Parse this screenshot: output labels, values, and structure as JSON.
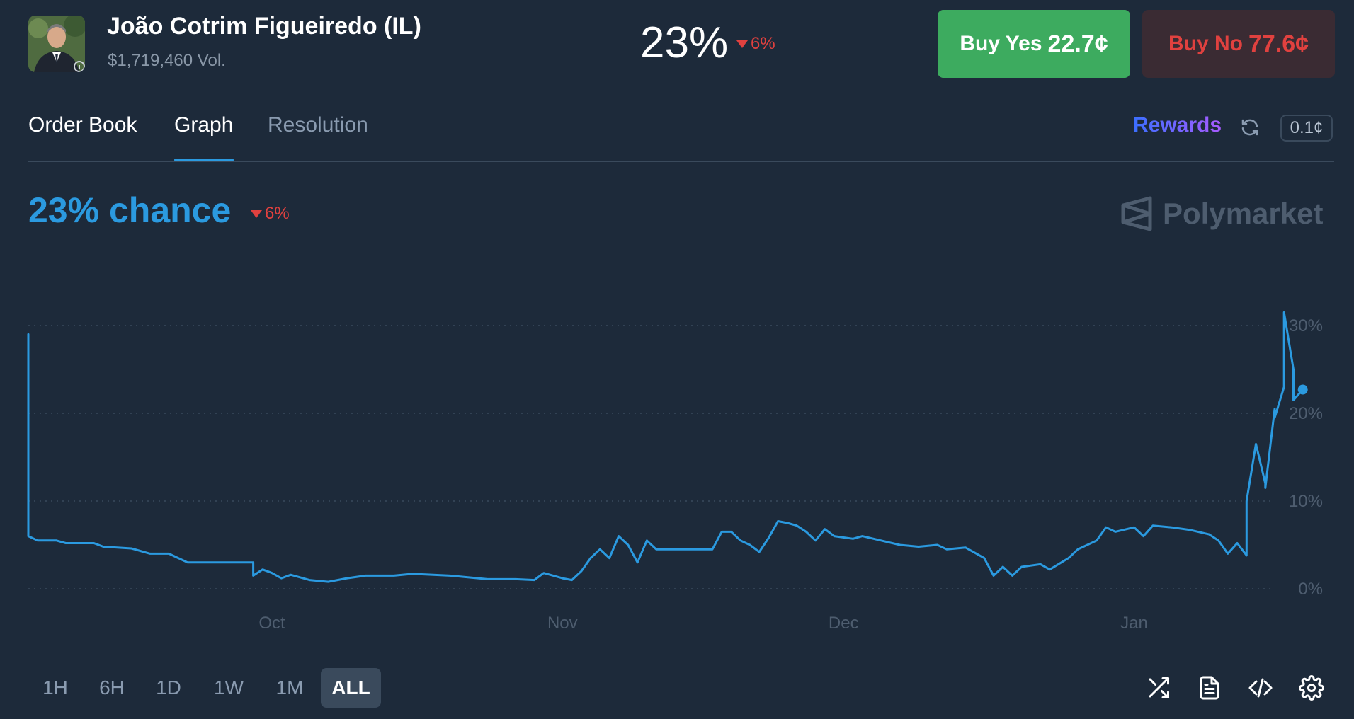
{
  "header": {
    "title": "João Cotrim Figueiredo (IL)",
    "volume": "$1,719,460 Vol.",
    "percent": "23%",
    "change": "6%",
    "buy_yes_label": "Buy Yes",
    "buy_yes_price": "22.7¢",
    "buy_no_label": "Buy No",
    "buy_no_price": "77.6¢"
  },
  "tabs": [
    {
      "label": "Order Book"
    },
    {
      "label": "Graph"
    },
    {
      "label": "Resolution"
    }
  ],
  "active_tab": "Graph",
  "tools": {
    "rewards_label": "Rewards",
    "tick_size": "0.1¢"
  },
  "summary": {
    "chance": "23% chance",
    "change": "6%",
    "brand": "Polymarket"
  },
  "ranges": [
    "1H",
    "6H",
    "1D",
    "1W",
    "1M",
    "ALL"
  ],
  "active_range": "ALL",
  "bottom_icons": [
    "shuffle-icon",
    "document-icon",
    "code-icon",
    "settings-icon"
  ],
  "colors": {
    "background": "#1d2a3a",
    "accent": "#2b9ae0",
    "negative": "#e0413f",
    "yes": "#3dab5f",
    "no_bg": "#3a2b33"
  },
  "chart_data": {
    "type": "line",
    "title": "",
    "xlabel": "",
    "ylabel": "",
    "x_ticks": [
      "Oct",
      "Nov",
      "Dec",
      "Jan"
    ],
    "y_ticks": [
      "0%",
      "10%",
      "20%",
      "30%"
    ],
    "ylim": [
      0,
      30
    ],
    "grid": true,
    "x_range": [
      "2025-09-05",
      "2026-01-16"
    ],
    "series": [
      {
        "values": [
          [
            "2025-09-05",
            29
          ],
          [
            "2025-09-05",
            6
          ],
          [
            "2025-09-06",
            5.5
          ],
          [
            "2025-09-08",
            5.5
          ],
          [
            "2025-09-09",
            5.2
          ],
          [
            "2025-09-12",
            5.2
          ],
          [
            "2025-09-13",
            4.8
          ],
          [
            "2025-09-16",
            4.6
          ],
          [
            "2025-09-18",
            4.0
          ],
          [
            "2025-09-20",
            4.0
          ],
          [
            "2025-09-21",
            3.5
          ],
          [
            "2025-09-22",
            3.0
          ],
          [
            "2025-09-25",
            3.0
          ],
          [
            "2025-09-29",
            3.0
          ],
          [
            "2025-09-29",
            1.5
          ],
          [
            "2025-09-30",
            2.2
          ],
          [
            "2025-10-01",
            1.8
          ],
          [
            "2025-10-02",
            1.2
          ],
          [
            "2025-10-03",
            1.6
          ],
          [
            "2025-10-05",
            1.0
          ],
          [
            "2025-10-07",
            0.8
          ],
          [
            "2025-10-09",
            1.2
          ],
          [
            "2025-10-11",
            1.5
          ],
          [
            "2025-10-14",
            1.5
          ],
          [
            "2025-10-16",
            1.7
          ],
          [
            "2025-10-20",
            1.5
          ],
          [
            "2025-10-24",
            1.1
          ],
          [
            "2025-10-27",
            1.1
          ],
          [
            "2025-10-29",
            1.0
          ],
          [
            "2025-10-30",
            1.8
          ],
          [
            "2025-11-01",
            1.2
          ],
          [
            "2025-11-02",
            1.0
          ],
          [
            "2025-11-03",
            2.0
          ],
          [
            "2025-11-04",
            3.5
          ],
          [
            "2025-11-05",
            4.5
          ],
          [
            "2025-11-06",
            3.5
          ],
          [
            "2025-11-07",
            6.0
          ],
          [
            "2025-11-08",
            5.0
          ],
          [
            "2025-11-09",
            3.0
          ],
          [
            "2025-11-10",
            5.5
          ],
          [
            "2025-11-11",
            4.5
          ],
          [
            "2025-11-15",
            4.5
          ],
          [
            "2025-11-17",
            4.5
          ],
          [
            "2025-11-18",
            6.5
          ],
          [
            "2025-11-19",
            6.5
          ],
          [
            "2025-11-20",
            5.5
          ],
          [
            "2025-11-21",
            5.0
          ],
          [
            "2025-11-22",
            4.2
          ],
          [
            "2025-11-23",
            5.8
          ],
          [
            "2025-11-24",
            7.7
          ],
          [
            "2025-11-25",
            7.5
          ],
          [
            "2025-11-26",
            7.2
          ],
          [
            "2025-11-27",
            6.5
          ],
          [
            "2025-11-28",
            5.5
          ],
          [
            "2025-11-29",
            6.8
          ],
          [
            "2025-11-30",
            6.0
          ],
          [
            "2025-12-02",
            5.7
          ],
          [
            "2025-12-03",
            6.0
          ],
          [
            "2025-12-05",
            5.5
          ],
          [
            "2025-12-07",
            5.0
          ],
          [
            "2025-12-09",
            4.8
          ],
          [
            "2025-12-11",
            5.0
          ],
          [
            "2025-12-12",
            4.5
          ],
          [
            "2025-12-14",
            4.7
          ],
          [
            "2025-12-16",
            3.5
          ],
          [
            "2025-12-17",
            1.5
          ],
          [
            "2025-12-18",
            2.5
          ],
          [
            "2025-12-19",
            1.5
          ],
          [
            "2025-12-20",
            2.5
          ],
          [
            "2025-12-22",
            2.8
          ],
          [
            "2025-12-23",
            2.2
          ],
          [
            "2025-12-25",
            3.5
          ],
          [
            "2025-12-26",
            4.5
          ],
          [
            "2025-12-28",
            5.5
          ],
          [
            "2025-12-29",
            7.0
          ],
          [
            "2025-12-30",
            6.5
          ],
          [
            "2026-01-01",
            7.0
          ],
          [
            "2026-01-02",
            6.0
          ],
          [
            "2026-01-03",
            7.2
          ],
          [
            "2026-01-05",
            7.0
          ],
          [
            "2026-01-07",
            6.7
          ],
          [
            "2026-01-09",
            6.2
          ],
          [
            "2026-01-10",
            5.5
          ],
          [
            "2026-01-11",
            4.0
          ],
          [
            "2026-01-12",
            5.2
          ],
          [
            "2026-01-13",
            3.8
          ],
          [
            "2026-01-13",
            10.0
          ],
          [
            "2026-01-14",
            16.5
          ],
          [
            "2026-01-15",
            12.0
          ],
          [
            "2026-01-15",
            11.5
          ],
          [
            "2026-01-16",
            20.5
          ],
          [
            "2026-01-16",
            19.5
          ],
          [
            "2026-01-17",
            23.0
          ],
          [
            "2026-01-17",
            31.5
          ],
          [
            "2026-01-18",
            25.0
          ],
          [
            "2026-01-18",
            21.5
          ],
          [
            "2026-01-19",
            22.7
          ]
        ]
      }
    ]
  }
}
